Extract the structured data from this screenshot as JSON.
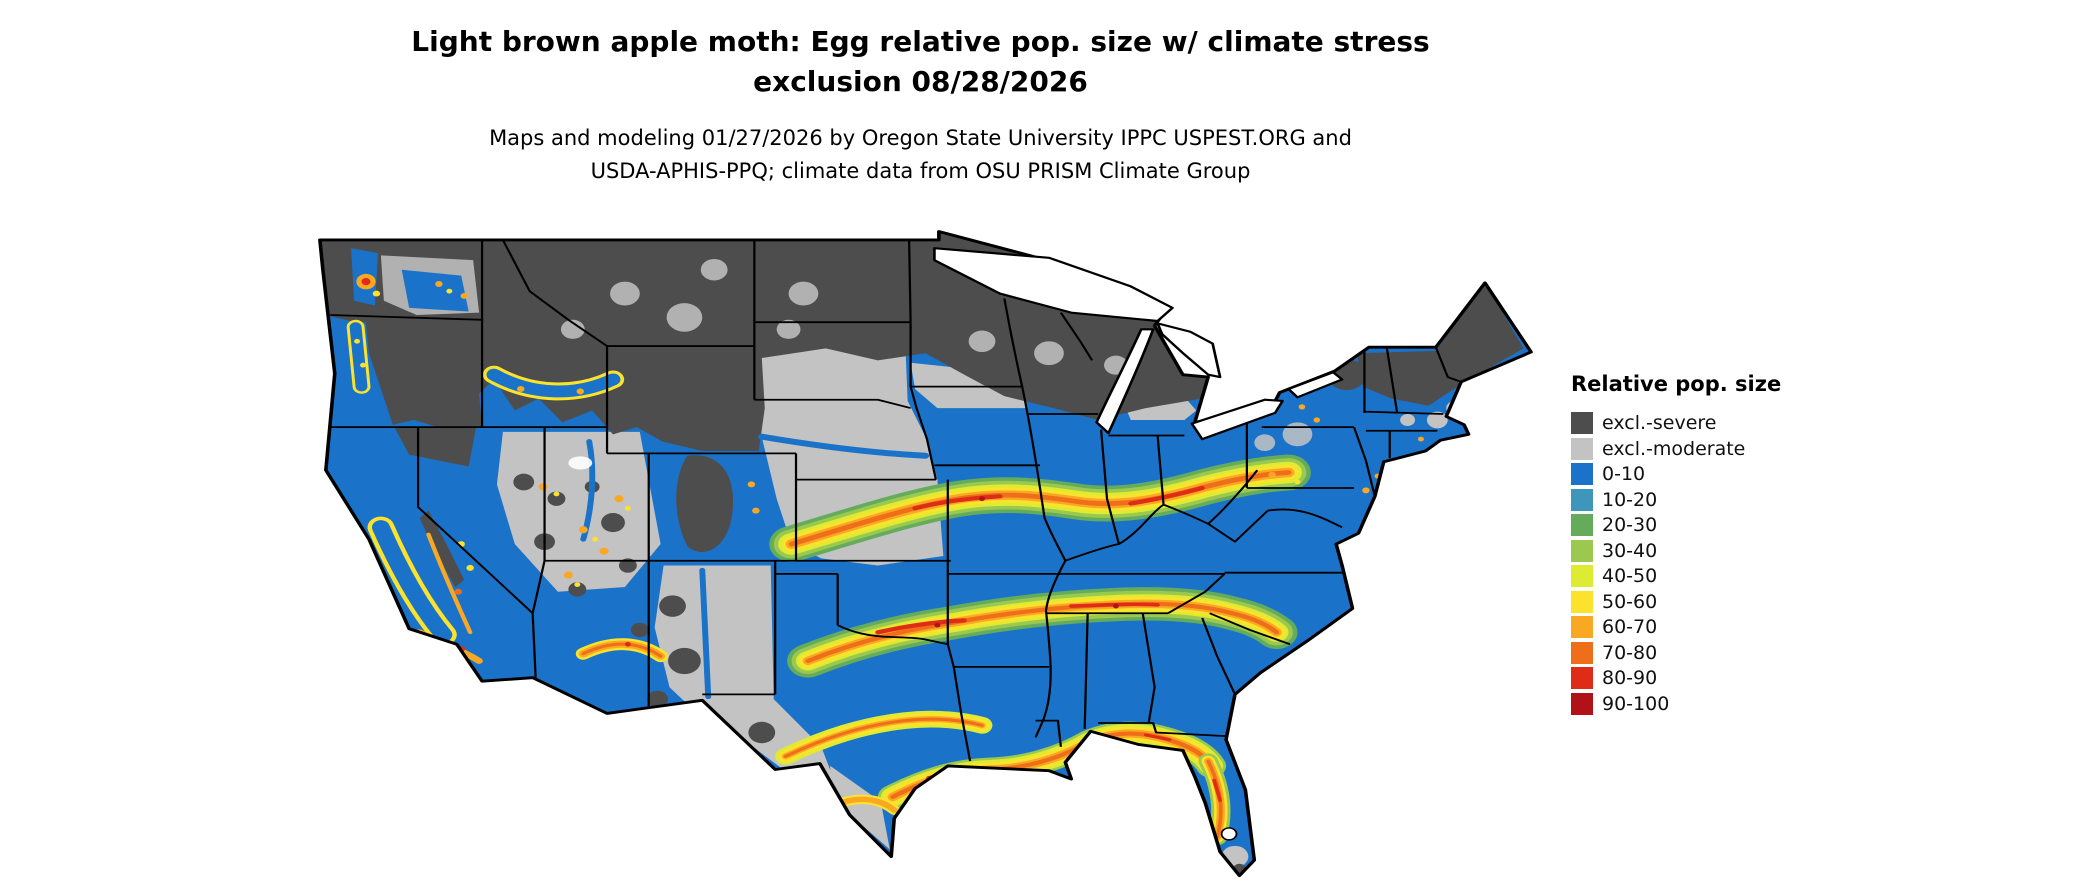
{
  "title": {
    "line1": "Light brown apple moth: Egg relative pop. size w/ climate stress",
    "line2": "exclusion 08/28/2026"
  },
  "subtitle": {
    "line1": "Maps and modeling 01/27/2026 by Oregon State University IPPC USPEST.ORG and",
    "line2": "USDA-APHIS-PPQ; climate data from OSU PRISM Climate Group"
  },
  "legend": {
    "title": "Relative pop. size",
    "items": [
      {
        "label": "excl.-severe",
        "color": "#4D4D4D"
      },
      {
        "label": "excl.-moderate",
        "color": "#C3C3C3"
      },
      {
        "label": "0-10",
        "color": "#1B73C9"
      },
      {
        "label": "10-20",
        "color": "#3E97BB"
      },
      {
        "label": "20-30",
        "color": "#64AC5C"
      },
      {
        "label": "30-40",
        "color": "#9BC84F"
      },
      {
        "label": "40-50",
        "color": "#DDEB33"
      },
      {
        "label": "50-60",
        "color": "#FBE22C"
      },
      {
        "label": "60-70",
        "color": "#F9A823"
      },
      {
        "label": "70-80",
        "color": "#EF6E1A"
      },
      {
        "label": "80-90",
        "color": "#DE2C17"
      },
      {
        "label": "90-100",
        "color": "#B01217"
      }
    ]
  },
  "map": {
    "region": "Contiguous United States",
    "water_color": "#FFFFFF",
    "border_color": "#000000"
  }
}
